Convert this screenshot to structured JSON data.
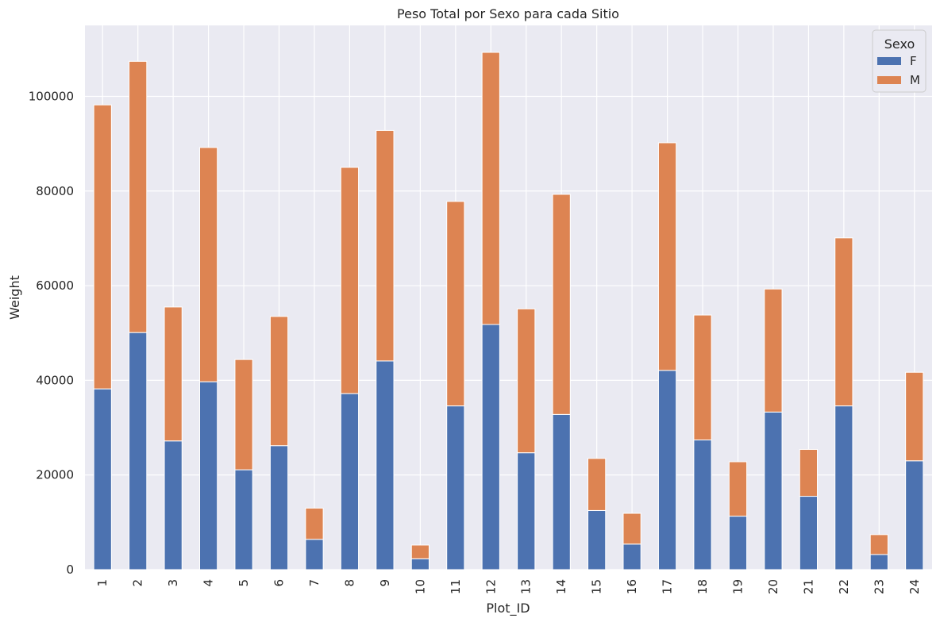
{
  "chart_data": {
    "type": "bar",
    "stacked": true,
    "title": "Peso Total por Sexo para cada Sitio",
    "xlabel": "Plot_ID",
    "ylabel": "Weight",
    "categories": [
      "1",
      "2",
      "3",
      "4",
      "5",
      "6",
      "7",
      "8",
      "9",
      "10",
      "11",
      "12",
      "13",
      "14",
      "15",
      "16",
      "17",
      "18",
      "19",
      "20",
      "21",
      "22",
      "23",
      "24"
    ],
    "series": [
      {
        "name": "F",
        "color": "#4c72b0",
        "values": [
          38200,
          50100,
          27200,
          39700,
          21100,
          26200,
          6400,
          37200,
          44100,
          2300,
          34600,
          51800,
          24700,
          32800,
          12500,
          5400,
          42100,
          27400,
          11300,
          33300,
          15500,
          34600,
          3200,
          23000
        ]
      },
      {
        "name": "M",
        "color": "#dd8452",
        "values": [
          60000,
          57300,
          28300,
          49500,
          23300,
          27300,
          6600,
          47800,
          48700,
          2900,
          43200,
          57500,
          30400,
          46500,
          11000,
          6500,
          48100,
          26400,
          11500,
          26000,
          9900,
          35500,
          4200,
          18700
        ]
      }
    ],
    "ylim": [
      0,
      115000
    ],
    "yticks": [
      0,
      20000,
      40000,
      60000,
      80000,
      100000
    ],
    "grid": true,
    "legend": {
      "title": "Sexo",
      "position": "top-right"
    },
    "background": "#eaeaf2"
  }
}
